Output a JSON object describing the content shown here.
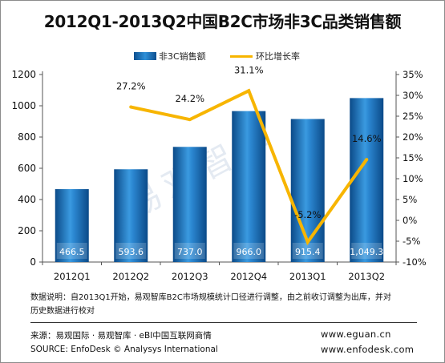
{
  "chart_data": {
    "type": "bar+line",
    "title": "2012Q1-2013Q2中国B2C市场非3C品类销售额",
    "categories": [
      "2012Q1",
      "2012Q2",
      "2012Q3",
      "2012Q4",
      "2013Q1",
      "2013Q2"
    ],
    "series": [
      {
        "name": "非3C销售额",
        "type": "bar",
        "axis": "left",
        "values": [
          466.5,
          593.6,
          737.0,
          966.0,
          915.4,
          1049.3
        ],
        "labels": [
          "466.5",
          "593.6",
          "737.0",
          "966.0",
          "915.4",
          "1,049.3"
        ]
      },
      {
        "name": "环比增长率",
        "type": "line",
        "axis": "right",
        "values": [
          null,
          27.2,
          24.2,
          31.1,
          -5.2,
          14.6
        ],
        "labels": [
          "",
          "27.2%",
          "24.2%",
          "31.1%",
          "-5.2%",
          "14.6%"
        ]
      }
    ],
    "y_left": {
      "range": [
        0,
        1200
      ],
      "ticks": [
        "0",
        "200",
        "400",
        "600",
        "800",
        "1000",
        "1200"
      ]
    },
    "y_right": {
      "range": [
        -10,
        35
      ],
      "ticks": [
        "-10%",
        "-5%",
        "0%",
        "5%",
        "10%",
        "15%",
        "20%",
        "25%",
        "30%",
        "35%"
      ]
    },
    "legend_position": "top",
    "colors": {
      "bar": "#1f78c8",
      "line": "#f7b500"
    }
  },
  "note": {
    "line1": "数据说明：自2013Q1开始，易观智库B2C市场规模统计口径进行调整，由之前收订调整为出库，并对",
    "line2": "历史数据进行校对"
  },
  "footer": {
    "source_cn": "来源：易观国际 · 易观智库 · eBI中国互联网商情",
    "source_en": "SOURCE: EnfoDesk © Analysys International",
    "url1": "www.eguan.cn",
    "url2": "www.enfodesk.com"
  },
  "watermark": "易观智库"
}
